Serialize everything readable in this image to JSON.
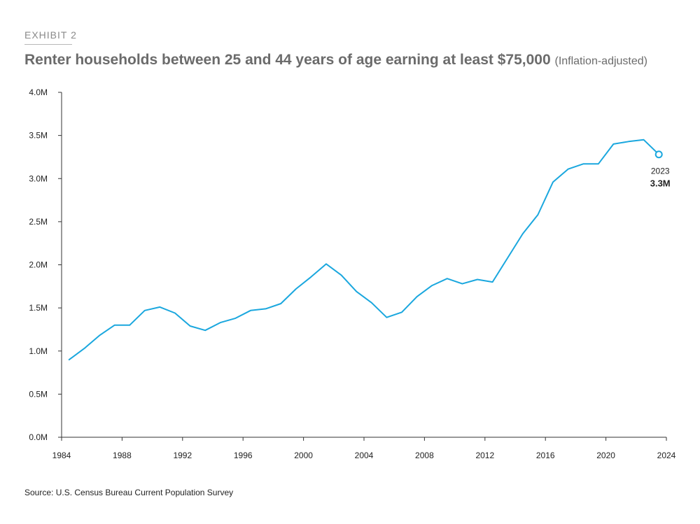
{
  "header": {
    "exhibit": "EXHIBIT 2",
    "title": "Renter households between 25 and 44 years of age earning at least $75,000",
    "subtitle": "(Inflation-adjusted)"
  },
  "footer": {
    "source": "Source: U.S. Census Bureau Current Population Survey"
  },
  "colors": {
    "line": "#1aa7de",
    "axis": "#333333"
  },
  "chart_data": {
    "type": "line",
    "title": "Renter households between 25 and 44 years of age earning at least $75,000",
    "subtitle": "(Inflation-adjusted)",
    "xlabel": "",
    "ylabel": "",
    "xlim": [
      1984,
      2024
    ],
    "ylim": [
      0,
      4.0
    ],
    "grid": false,
    "x_ticks": [
      "1984",
      "1988",
      "1992",
      "1996",
      "2000",
      "2004",
      "2008",
      "2012",
      "2016",
      "2020",
      "2024"
    ],
    "y_ticks": [
      "0.0M",
      "0.5M",
      "1.0M",
      "1.5M",
      "2.0M",
      "2.5M",
      "3.0M",
      "3.5M",
      "4.0M"
    ],
    "y_tick_values": [
      0,
      0.5,
      1.0,
      1.5,
      2.0,
      2.5,
      3.0,
      3.5,
      4.0
    ],
    "x_tick_values": [
      1984,
      1988,
      1992,
      1996,
      2000,
      2004,
      2008,
      2012,
      2016,
      2020,
      2024
    ],
    "series": [
      {
        "x": [
          1984.5,
          1985.5,
          1986.5,
          1987.5,
          1988.5,
          1989.5,
          1990.5,
          1991.5,
          1992.5,
          1993.5,
          1994.5,
          1995.5,
          1996.5,
          1997.5,
          1998.5,
          1999.5,
          2000.5,
          2001.5,
          2002.5,
          2003.5,
          2004.5,
          2005.5,
          2006.5,
          2007.5,
          2008.5,
          2009.5,
          2010.5,
          2011.5,
          2012.5,
          2013.5,
          2014.5,
          2015.5,
          2016.5,
          2017.5,
          2018.5,
          2019.5,
          2020.5,
          2021.5,
          2022.5,
          2023.5
        ],
        "values": [
          0.9,
          1.03,
          1.18,
          1.3,
          1.3,
          1.47,
          1.51,
          1.44,
          1.29,
          1.24,
          1.33,
          1.38,
          1.47,
          1.49,
          1.55,
          1.72,
          1.86,
          2.01,
          1.88,
          1.69,
          1.56,
          1.39,
          1.45,
          1.63,
          1.76,
          1.84,
          1.78,
          1.83,
          1.8,
          2.08,
          2.36,
          2.58,
          2.96,
          3.11,
          3.17,
          3.17,
          3.4,
          3.43,
          3.45,
          3.28
        ]
      }
    ],
    "annotation": {
      "year": "2023",
      "value": "3.3M",
      "x": 2023.5,
      "y": 3.28
    }
  }
}
